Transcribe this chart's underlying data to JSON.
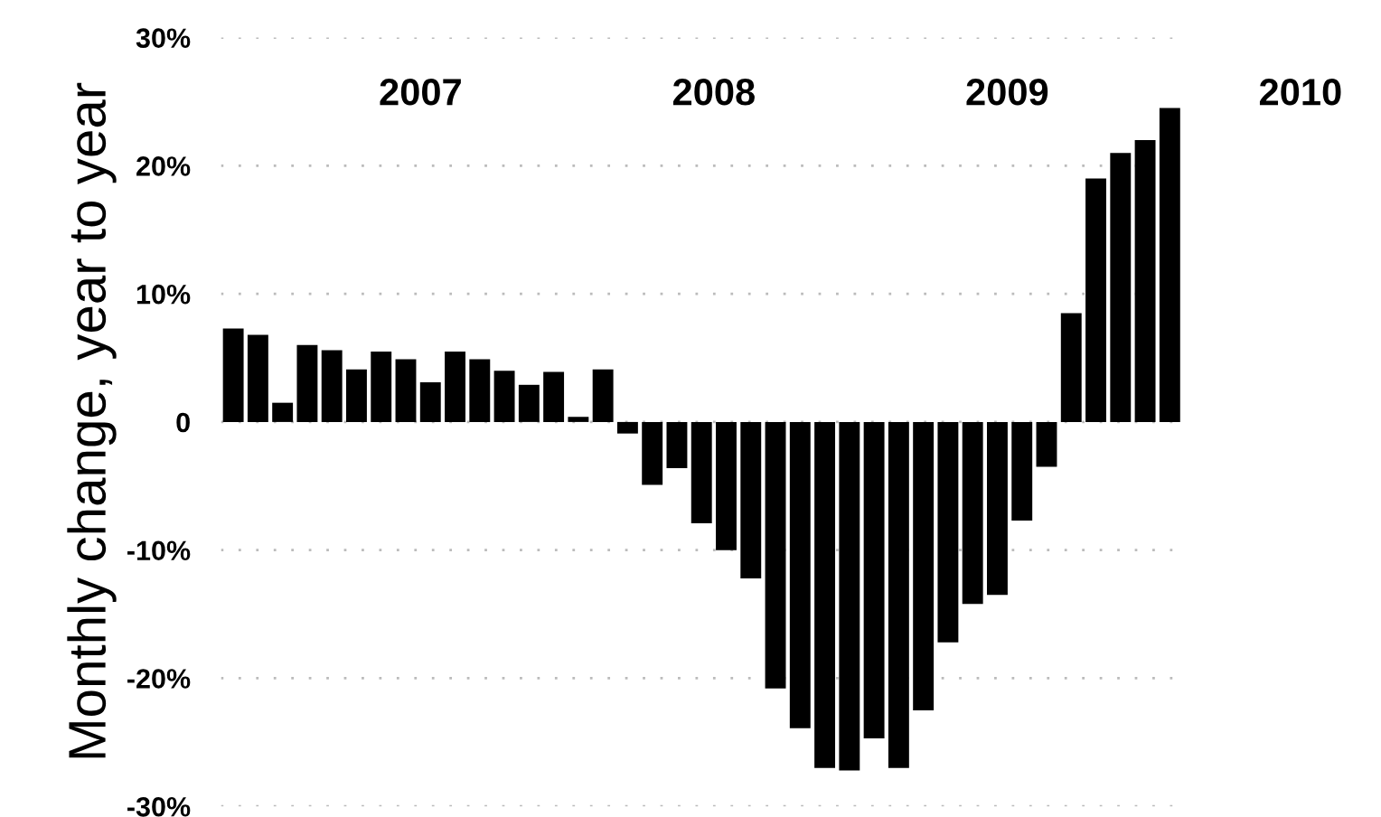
{
  "chart_data": {
    "type": "bar",
    "ylabel": "Monthly change, year to year",
    "categories": [
      null,
      null,
      null,
      null,
      null,
      null,
      null,
      null,
      null,
      null,
      null,
      null,
      null,
      null,
      null,
      null,
      null,
      null,
      null,
      null,
      null,
      null,
      null,
      null,
      null,
      null,
      null,
      null,
      null,
      null,
      null,
      null,
      null,
      null,
      null,
      null,
      null,
      null,
      null
    ],
    "values": [
      7.3,
      6.8,
      1.5,
      6.0,
      5.6,
      4.1,
      5.5,
      4.9,
      3.1,
      5.5,
      4.9,
      4.0,
      2.9,
      3.9,
      0.4,
      4.1,
      -0.9,
      -4.9,
      -3.6,
      -7.9,
      -10.0,
      -12.2,
      -20.8,
      -23.9,
      -27.0,
      -27.2,
      -24.7,
      -27.0,
      -22.5,
      -17.2,
      -14.2,
      -13.5,
      -7.7,
      -3.5,
      8.5,
      19.0,
      21.0,
      22.0,
      24.5
    ],
    "color": "#000000",
    "ylim": [
      -30,
      30
    ],
    "yticks": [
      {
        "value": -30,
        "label": "-30%"
      },
      {
        "value": -20,
        "label": "-20%"
      },
      {
        "value": -10,
        "label": "-10%"
      },
      0,
      {
        "value": 10,
        "label": "10%"
      },
      {
        "value": 20,
        "label": "20%"
      },
      {
        "value": 30,
        "label": "30%"
      }
    ],
    "grid": "y",
    "annotations": [
      "2007",
      "2008",
      "2009",
      "2010"
    ]
  }
}
